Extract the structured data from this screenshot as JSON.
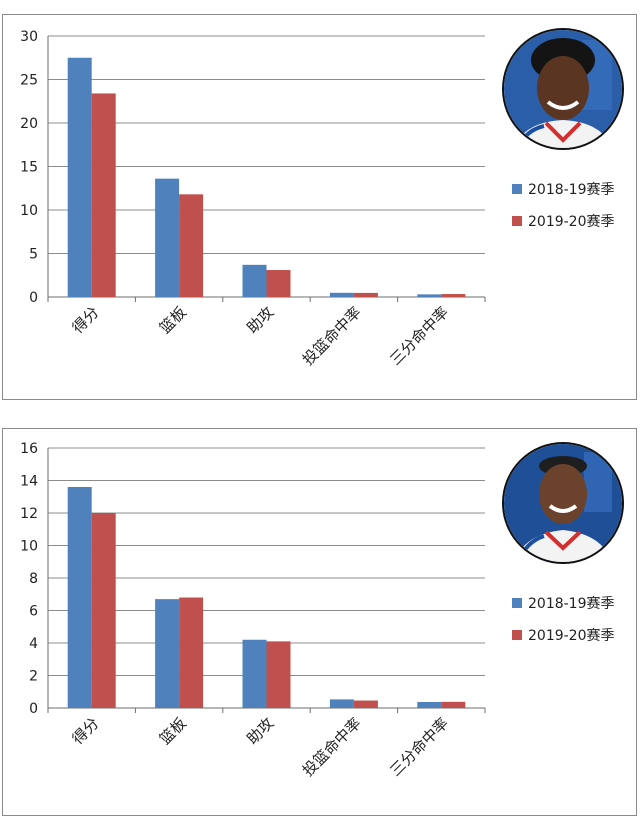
{
  "chart_data": [
    {
      "type": "bar",
      "categories": [
        "得分",
        "篮板",
        "助攻",
        "投篮命中率",
        "三分命中率"
      ],
      "series": [
        {
          "name": "2018-19赛季",
          "color": "#4f81bd",
          "values": [
            27.5,
            13.6,
            3.7,
            0.48,
            0.3
          ]
        },
        {
          "name": "2019-20赛季",
          "color": "#c0504d",
          "values": [
            23.4,
            11.8,
            3.1,
            0.47,
            0.34
          ]
        }
      ],
      "ylim": [
        0,
        30
      ],
      "yticks": [
        0,
        5,
        10,
        15,
        20,
        25,
        30
      ],
      "grid": true,
      "legend": "right",
      "avatar": "player-headshot-embiid"
    },
    {
      "type": "bar",
      "categories": [
        "得分",
        "篮板",
        "助攻",
        "投篮命中率",
        "三分命中率"
      ],
      "series": [
        {
          "name": "2018-19赛季",
          "color": "#4f81bd",
          "values": [
            13.6,
            6.7,
            4.2,
            0.53,
            0.37
          ]
        },
        {
          "name": "2019-20赛季",
          "color": "#c0504d",
          "values": [
            12.0,
            6.8,
            4.1,
            0.46,
            0.38
          ]
        }
      ],
      "ylim": [
        0,
        16
      ],
      "yticks": [
        0,
        2,
        4,
        6,
        8,
        10,
        12,
        14,
        16
      ],
      "grid": true,
      "legend": "right",
      "avatar": "player-headshot-horford"
    }
  ]
}
